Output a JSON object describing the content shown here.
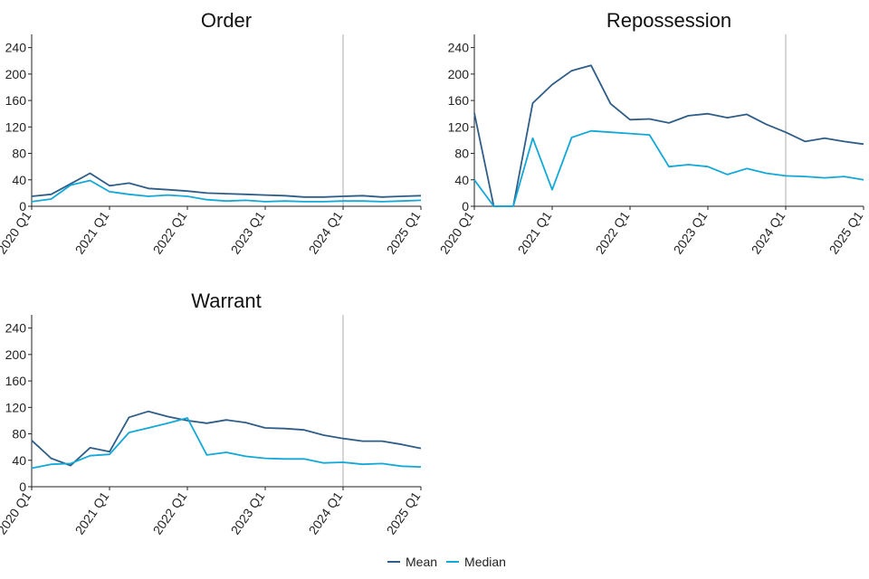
{
  "colors": {
    "mean": "#2e5d87",
    "median": "#12a8d8",
    "axis": "#222222",
    "vline": "#c8c8c8"
  },
  "legend": {
    "mean_label": "Mean",
    "median_label": "Median"
  },
  "chart_data": [
    {
      "type": "line",
      "title": "Order",
      "x_tick_labels": [
        "2020 Q1",
        "2021 Q1",
        "2022 Q1",
        "2023 Q1",
        "2024 Q1",
        "2025 Q1"
      ],
      "ylim": [
        0,
        260
      ],
      "y_ticks": [
        0,
        40,
        80,
        120,
        160,
        200,
        240
      ],
      "reference_line_at": "2024 Q1",
      "x": [
        "2020 Q1",
        "2020 Q2",
        "2020 Q3",
        "2020 Q4",
        "2021 Q1",
        "2021 Q2",
        "2021 Q3",
        "2021 Q4",
        "2022 Q1",
        "2022 Q2",
        "2022 Q3",
        "2022 Q4",
        "2023 Q1",
        "2023 Q2",
        "2023 Q3",
        "2023 Q4",
        "2024 Q1",
        "2024 Q2",
        "2024 Q3",
        "2024 Q4",
        "2025 Q1"
      ],
      "series": [
        {
          "name": "Mean",
          "values": [
            15,
            18,
            34,
            50,
            31,
            35,
            27,
            25,
            23,
            20,
            19,
            18,
            17,
            16,
            14,
            14,
            15,
            16,
            14,
            15,
            16
          ]
        },
        {
          "name": "Median",
          "values": [
            7,
            11,
            32,
            39,
            22,
            18,
            15,
            17,
            15,
            10,
            8,
            9,
            7,
            8,
            7,
            7,
            8,
            8,
            7,
            8,
            9
          ]
        }
      ]
    },
    {
      "type": "line",
      "title": "Repossession",
      "x_tick_labels": [
        "2020 Q1",
        "2021 Q1",
        "2022 Q1",
        "2023 Q1",
        "2024 Q1",
        "2025 Q1"
      ],
      "ylim": [
        0,
        260
      ],
      "y_ticks": [
        0,
        40,
        80,
        120,
        160,
        200,
        240
      ],
      "reference_line_at": "2024 Q1",
      "x": [
        "2020 Q1",
        "2020 Q2",
        "2020 Q3",
        "2020 Q4",
        "2021 Q1",
        "2021 Q2",
        "2021 Q3",
        "2021 Q4",
        "2022 Q1",
        "2022 Q2",
        "2022 Q3",
        "2022 Q4",
        "2023 Q1",
        "2023 Q2",
        "2023 Q3",
        "2023 Q4",
        "2024 Q1",
        "2024 Q2",
        "2024 Q3",
        "2024 Q4",
        "2025 Q1"
      ],
      "series": [
        {
          "name": "Mean",
          "values": [
            141,
            0,
            0,
            156,
            184,
            205,
            213,
            155,
            131,
            132,
            126,
            137,
            140,
            134,
            139,
            124,
            112,
            98,
            103,
            98,
            94
          ]
        },
        {
          "name": "Median",
          "values": [
            40,
            0,
            0,
            103,
            25,
            104,
            114,
            112,
            110,
            108,
            60,
            63,
            60,
            48,
            57,
            50,
            46,
            45,
            43,
            45,
            40
          ]
        }
      ]
    },
    {
      "type": "line",
      "title": "Warrant",
      "x_tick_labels": [
        "2020 Q1",
        "2021 Q1",
        "2022 Q1",
        "2023 Q1",
        "2024 Q1",
        "2025 Q1"
      ],
      "ylim": [
        0,
        260
      ],
      "y_ticks": [
        0,
        40,
        80,
        120,
        160,
        200,
        240
      ],
      "reference_line_at": "2024 Q1",
      "x": [
        "2020 Q1",
        "2020 Q2",
        "2020 Q3",
        "2020 Q4",
        "2021 Q1",
        "2021 Q2",
        "2021 Q3",
        "2021 Q4",
        "2022 Q1",
        "2022 Q2",
        "2022 Q3",
        "2022 Q4",
        "2023 Q1",
        "2023 Q2",
        "2023 Q3",
        "2023 Q4",
        "2024 Q1",
        "2024 Q2",
        "2024 Q3",
        "2024 Q4",
        "2025 Q1"
      ],
      "series": [
        {
          "name": "Mean",
          "values": [
            70,
            43,
            32,
            59,
            53,
            105,
            114,
            106,
            100,
            96,
            101,
            97,
            89,
            88,
            86,
            78,
            73,
            69,
            69,
            64,
            58
          ]
        },
        {
          "name": "Median",
          "values": [
            28,
            34,
            35,
            47,
            49,
            82,
            89,
            96,
            104,
            48,
            52,
            46,
            43,
            42,
            42,
            36,
            37,
            34,
            35,
            31,
            30
          ]
        }
      ]
    }
  ]
}
